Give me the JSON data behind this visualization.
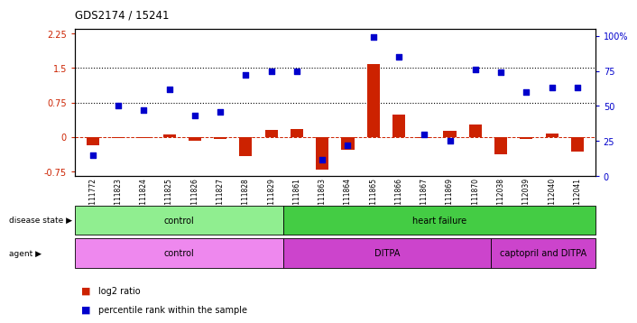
{
  "title": "GDS2174 / 15241",
  "samples": [
    "GSM111772",
    "GSM111823",
    "GSM111824",
    "GSM111825",
    "GSM111826",
    "GSM111827",
    "GSM111828",
    "GSM111829",
    "GSM111861",
    "GSM111863",
    "GSM111864",
    "GSM111865",
    "GSM111866",
    "GSM111867",
    "GSM111869",
    "GSM111870",
    "GSM112038",
    "GSM112039",
    "GSM112040",
    "GSM112041"
  ],
  "log2_ratio": [
    -0.18,
    -0.02,
    -0.02,
    0.05,
    -0.08,
    -0.05,
    -0.42,
    0.15,
    0.18,
    -0.7,
    -0.28,
    1.58,
    0.48,
    -0.03,
    0.14,
    0.28,
    -0.38,
    -0.04,
    0.07,
    -0.32
  ],
  "percentile_rank": [
    15,
    50,
    47,
    62,
    43,
    46,
    72,
    75,
    75,
    12,
    22,
    99,
    85,
    30,
    25,
    76,
    74,
    60,
    63,
    63
  ],
  "red_color": "#cc2200",
  "blue_color": "#0000cc",
  "dashed_color": "#cc2200",
  "ylim_left": [
    -0.85,
    2.35
  ],
  "ylim_right": [
    0,
    105
  ],
  "yticks_left": [
    -0.75,
    0.0,
    0.75,
    1.5,
    2.25
  ],
  "yticks_right": [
    0,
    25,
    50,
    75,
    100
  ],
  "hline_values": [
    0.75,
    1.5
  ],
  "disease_state_groups": [
    {
      "label": "control",
      "start": 0,
      "end": 8,
      "color": "#90ee90"
    },
    {
      "label": "heart failure",
      "start": 8,
      "end": 20,
      "color": "#44cc44"
    }
  ],
  "agent_groups": [
    {
      "label": "control",
      "start": 0,
      "end": 8,
      "color": "#ee88ee"
    },
    {
      "label": "DITPA",
      "start": 8,
      "end": 16,
      "color": "#cc44cc"
    },
    {
      "label": "captopril and DITPA",
      "start": 16,
      "end": 20,
      "color": "#cc44cc"
    }
  ],
  "legend_items": [
    {
      "color": "#cc2200",
      "label": "log2 ratio"
    },
    {
      "color": "#0000cc",
      "label": "percentile rank within the sample"
    }
  ],
  "bar_width": 0.5,
  "dot_size": 18,
  "bg_color": "#ffffff"
}
